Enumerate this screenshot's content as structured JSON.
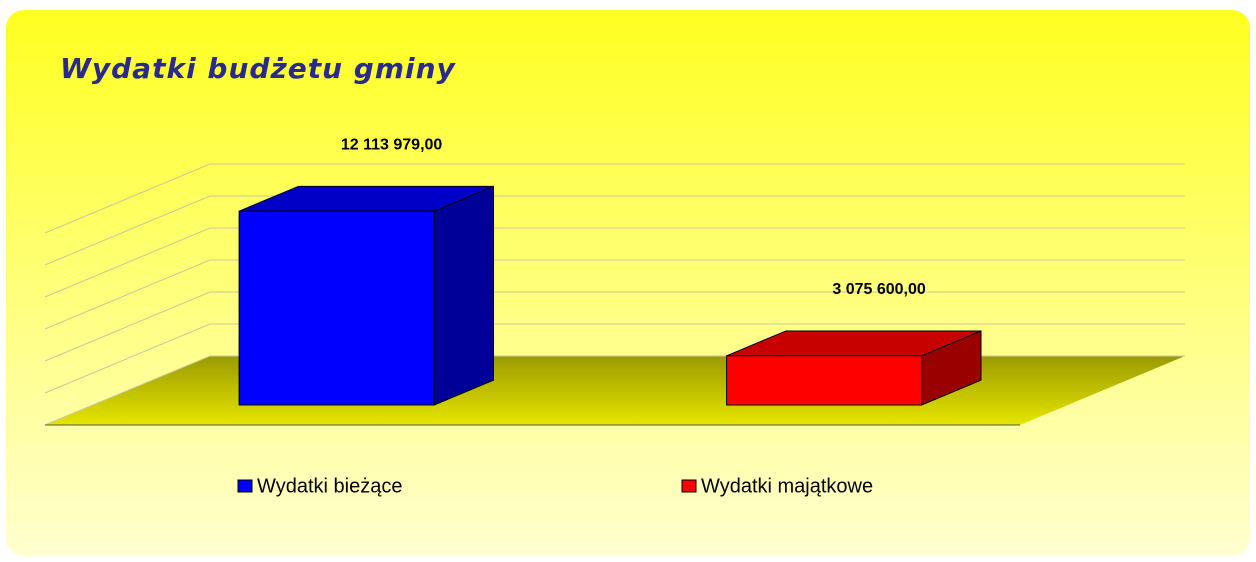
{
  "chart_data": {
    "type": "bar3d",
    "title": "Wydatki budżetu gminy",
    "categories": [
      "Wydatki bieżące",
      "Wydatki majątkowe"
    ],
    "values": [
      12113979,
      3075600
    ],
    "value_labels": [
      "12 113 979,00",
      "3 075 600,00"
    ],
    "colors": [
      "#0000ff",
      "#ff0000"
    ],
    "ylim": [
      0,
      12000000
    ],
    "yticks": [
      0,
      2000000,
      4000000,
      6000000,
      8000000,
      10000000,
      12000000
    ],
    "grid": true
  }
}
